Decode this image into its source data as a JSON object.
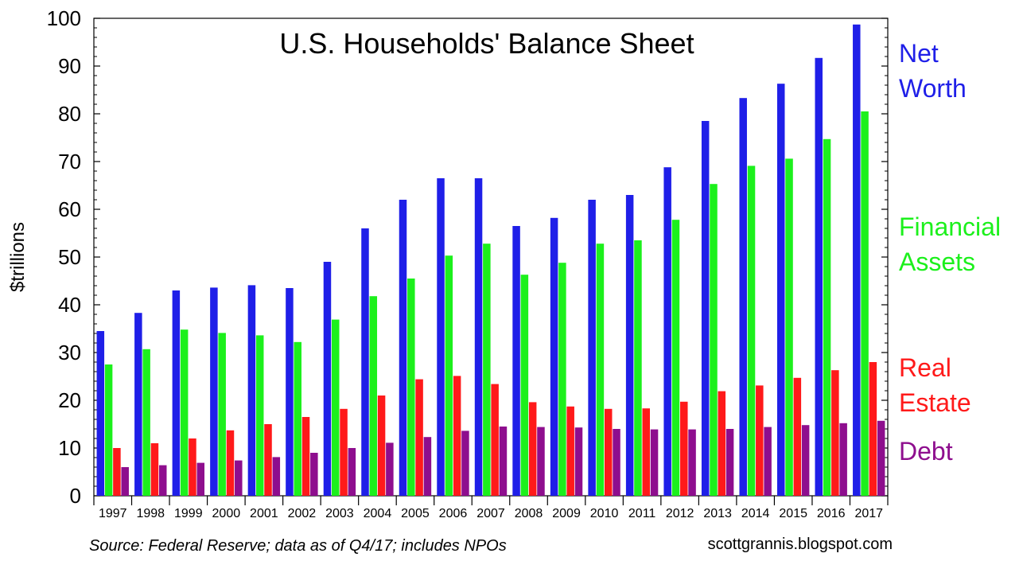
{
  "chart_data": {
    "type": "bar",
    "title": "U.S. Households' Balance Sheet",
    "ylabel": "$trillions",
    "xlabel": "",
    "ylim": [
      0,
      100
    ],
    "yticks": [
      0,
      10,
      20,
      30,
      40,
      50,
      60,
      70,
      80,
      90,
      100
    ],
    "grid": false,
    "legend_position": "right",
    "categories": [
      "1997",
      "1998",
      "1999",
      "2000",
      "2001",
      "2002",
      "2003",
      "2004",
      "2005",
      "2006",
      "2007",
      "2008",
      "2009",
      "2010",
      "2011",
      "2012",
      "2013",
      "2014",
      "2015",
      "2016",
      "2017"
    ],
    "series": [
      {
        "name": "Net Worth",
        "legend_lines": [
          "Net",
          "Worth"
        ],
        "color": "#1f1fe8",
        "values": [
          34.5,
          38.3,
          43.0,
          43.6,
          44.1,
          43.5,
          49.0,
          56.0,
          62.0,
          66.5,
          66.5,
          56.5,
          58.2,
          62.0,
          63.0,
          68.8,
          78.5,
          83.3,
          86.3,
          91.7,
          98.7
        ]
      },
      {
        "name": "Financial Assets",
        "legend_lines": [
          "Financial",
          "Assets"
        ],
        "color": "#1cf01c",
        "values": [
          27.5,
          30.7,
          34.8,
          34.1,
          33.6,
          32.2,
          36.9,
          41.8,
          45.5,
          50.3,
          52.8,
          46.3,
          48.8,
          52.8,
          53.5,
          57.8,
          65.3,
          69.1,
          70.6,
          74.7,
          80.5
        ]
      },
      {
        "name": "Real Estate",
        "legend_lines": [
          "Real",
          "Estate"
        ],
        "color": "#ff1a1a",
        "values": [
          10.0,
          11.0,
          12.0,
          13.7,
          15.0,
          16.5,
          18.2,
          21.0,
          24.4,
          25.1,
          23.4,
          19.6,
          18.7,
          18.2,
          18.3,
          19.7,
          21.9,
          23.1,
          24.7,
          26.3,
          28.0
        ]
      },
      {
        "name": "Debt",
        "legend_lines": [
          "Debt"
        ],
        "color": "#8e0e8e",
        "values": [
          6.0,
          6.4,
          6.9,
          7.4,
          8.1,
          9.0,
          10.0,
          11.1,
          12.3,
          13.6,
          14.5,
          14.4,
          14.3,
          14.0,
          13.9,
          13.9,
          14.0,
          14.4,
          14.8,
          15.2,
          15.7
        ]
      }
    ],
    "source": "Source: Federal Reserve; data as of Q4/17; includes NPOs",
    "credit": "scottgrannis.blogspot.com"
  }
}
